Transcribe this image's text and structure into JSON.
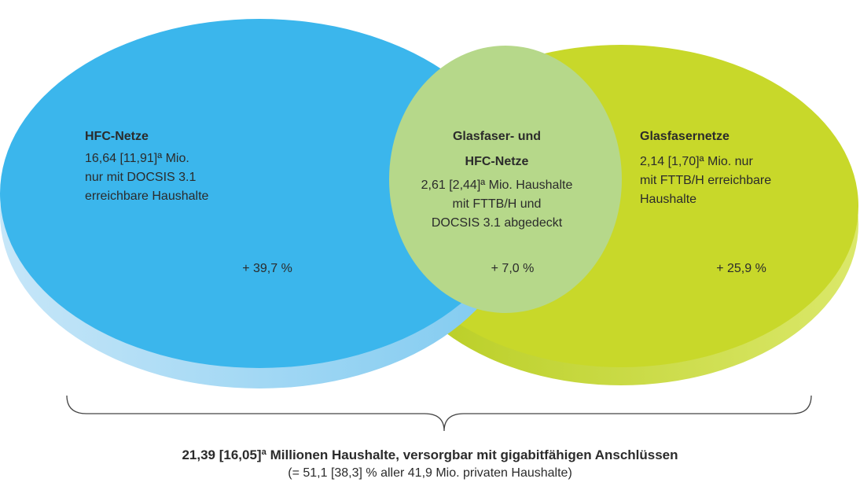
{
  "left": {
    "title": "HFC-Netze",
    "lines": [
      "16,64 [11,91]ª Mio.",
      "nur mit DOCSIS 3.1",
      "erreichbare Haushalte"
    ],
    "change": "+ 39,7 %"
  },
  "middle": {
    "title": [
      "Glasfaser- und",
      "HFC-Netze"
    ],
    "lines": [
      "2,61 [2,44]ª Mio. Haushalte",
      "mit FTTB/H und",
      "DOCSIS 3.1 abgedeckt"
    ],
    "change": "+ 7,0 %"
  },
  "right": {
    "title": "Glasfasernetze",
    "lines": [
      "2,14 [1,70]ª Mio. nur",
      "mit FTTB/H erreichbare",
      "Haushalte"
    ],
    "change": "+ 25,9 %"
  },
  "summary": {
    "title": "21,39 [16,05]ª Millionen Haushalte, versorgbar mit gigabitfähigen Anschlüssen",
    "subtitle": "(= 51,1 [38,3] % aller 41,9 Mio. privaten Haushalte)"
  }
}
